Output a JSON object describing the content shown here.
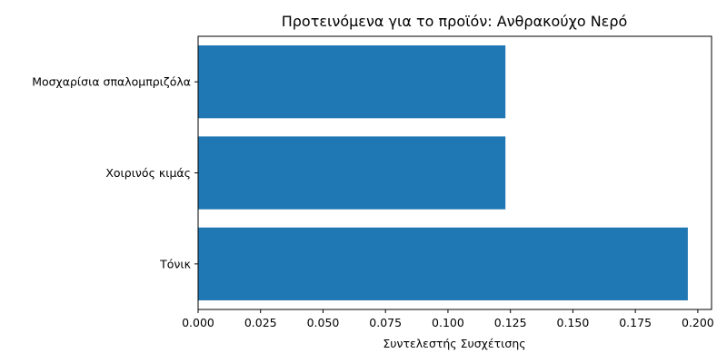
{
  "chart_data": {
    "type": "bar",
    "orientation": "horizontal",
    "title": "Προτεινόμενα για το προϊόν: Ανθρακούχο Νερό",
    "xlabel": "Συντελεστής Συσχέτισης",
    "ylabel": "",
    "categories": [
      "Τόνικ",
      "Χοιρινός κιμάς",
      "Μοσχαρίσια σπαλομπριζόλα"
    ],
    "values": [
      0.196,
      0.123,
      0.123
    ],
    "xlim": [
      0,
      0.2055
    ],
    "xticks": [
      0.0,
      0.025,
      0.05,
      0.075,
      0.1,
      0.125,
      0.15,
      0.175,
      0.2
    ],
    "xtick_labels": [
      "0.000",
      "0.025",
      "0.050",
      "0.075",
      "0.100",
      "0.125",
      "0.150",
      "0.175",
      "0.200"
    ],
    "bar_color": "#1f77b4",
    "grid": false,
    "legend": "none"
  }
}
